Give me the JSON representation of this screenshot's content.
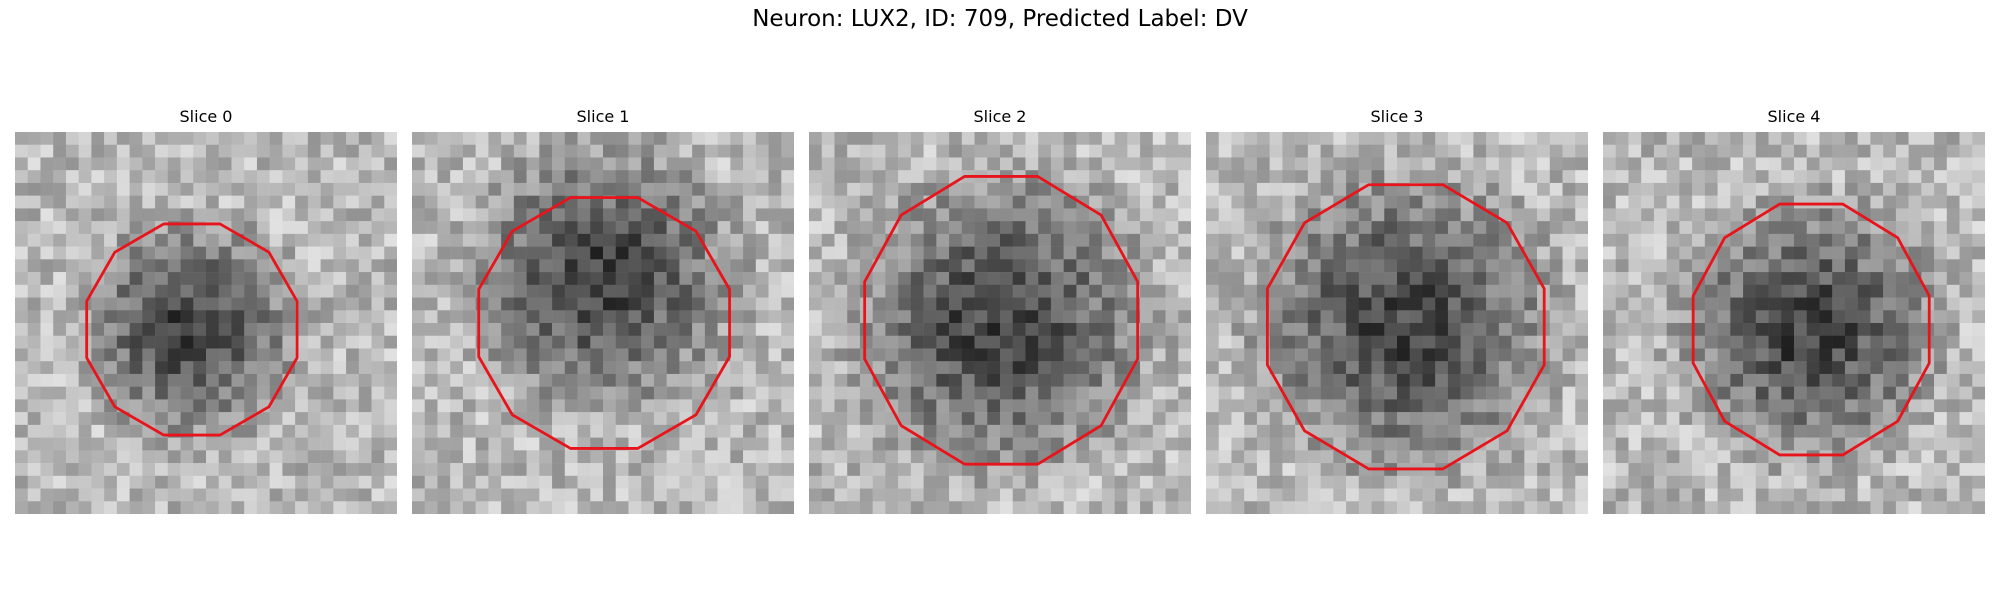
{
  "figure": {
    "title": "Neuron: LUX2, ID: 709, Predicted Label: DV"
  },
  "panels": [
    {
      "title": "Slice 0",
      "contour_center": [
        0.463,
        0.517
      ],
      "contour_radius": [
        0.285,
        0.286
      ],
      "dark_center": [
        0.46,
        0.52
      ],
      "dark_radius": 0.28,
      "seed": 11
    },
    {
      "title": "Slice 1",
      "contour_center": [
        0.503,
        0.5
      ],
      "contour_radius": [
        0.34,
        0.34
      ],
      "dark_center": [
        0.5,
        0.38
      ],
      "dark_radius": 0.34,
      "seed": 23
    },
    {
      "title": "Slice 2",
      "contour_center": [
        0.503,
        0.493
      ],
      "contour_radius": [
        0.37,
        0.39
      ],
      "dark_center": [
        0.5,
        0.5
      ],
      "dark_radius": 0.38,
      "seed": 37
    },
    {
      "title": "Slice 3",
      "contour_center": [
        0.523,
        0.51
      ],
      "contour_radius": [
        0.375,
        0.385
      ],
      "dark_center": [
        0.52,
        0.5
      ],
      "dark_radius": 0.38,
      "seed": 51
    },
    {
      "title": "Slice 4",
      "contour_center": [
        0.545,
        0.517
      ],
      "contour_radius": [
        0.32,
        0.34
      ],
      "dark_center": [
        0.54,
        0.52
      ],
      "dark_radius": 0.33,
      "seed": 67
    }
  ],
  "colors": {
    "contour": "#e8141b"
  }
}
